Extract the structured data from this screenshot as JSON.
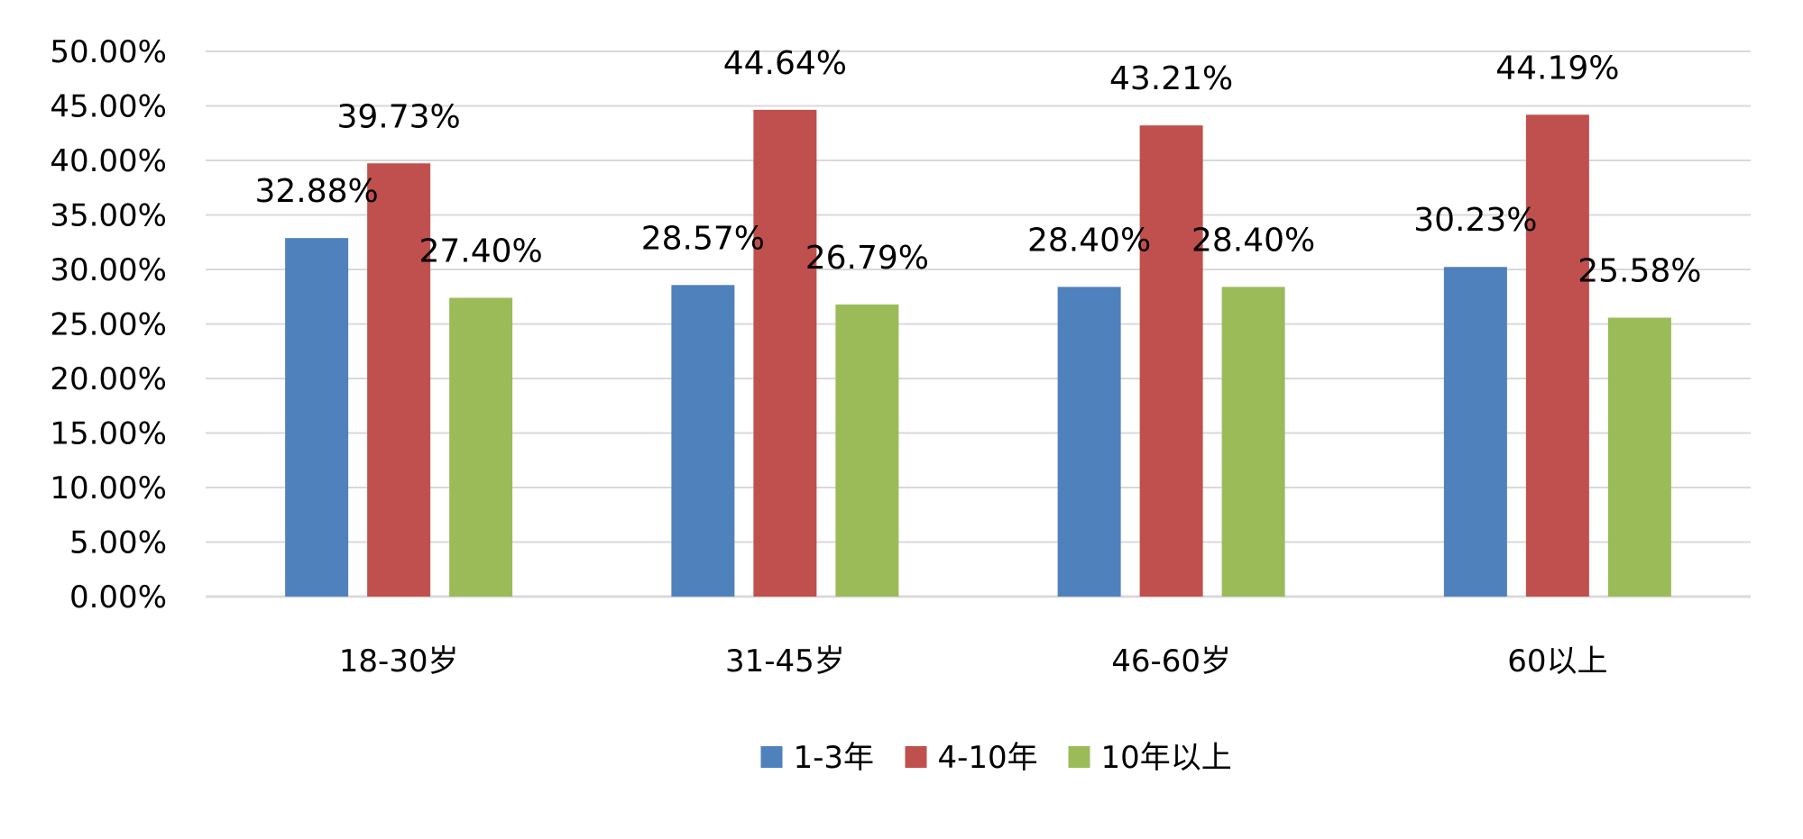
{
  "chart_data": {
    "type": "bar",
    "title": "",
    "xlabel": "",
    "ylabel": "",
    "categories": [
      "18-30岁",
      "31-45岁",
      "46-60岁",
      "60以上"
    ],
    "series": [
      {
        "name": "1-3年",
        "color": "#4F81BD",
        "values": [
          32.88,
          28.57,
          28.4,
          30.23
        ],
        "labels": [
          "32.88%",
          "28.57%",
          "28.40%",
          "30.23%"
        ]
      },
      {
        "name": "4-10年",
        "color": "#C0504D",
        "values": [
          39.73,
          44.64,
          43.21,
          44.19
        ],
        "labels": [
          "39.73%",
          "44.64%",
          "43.21%",
          "44.19%"
        ]
      },
      {
        "name": "10年以上",
        "color": "#9BBB59",
        "values": [
          27.4,
          26.79,
          28.4,
          25.58
        ],
        "labels": [
          "27.40%",
          "26.79%",
          "28.40%",
          "25.58%"
        ]
      }
    ],
    "ylim": [
      0,
      50
    ],
    "yticks": [
      "0.00%",
      "5.00%",
      "10.00%",
      "15.00%",
      "20.00%",
      "25.00%",
      "30.00%",
      "35.00%",
      "40.00%",
      "45.00%",
      "50.00%"
    ],
    "grid": true,
    "gridline_color": "#D9D9D9",
    "legend_position": "bottom"
  }
}
